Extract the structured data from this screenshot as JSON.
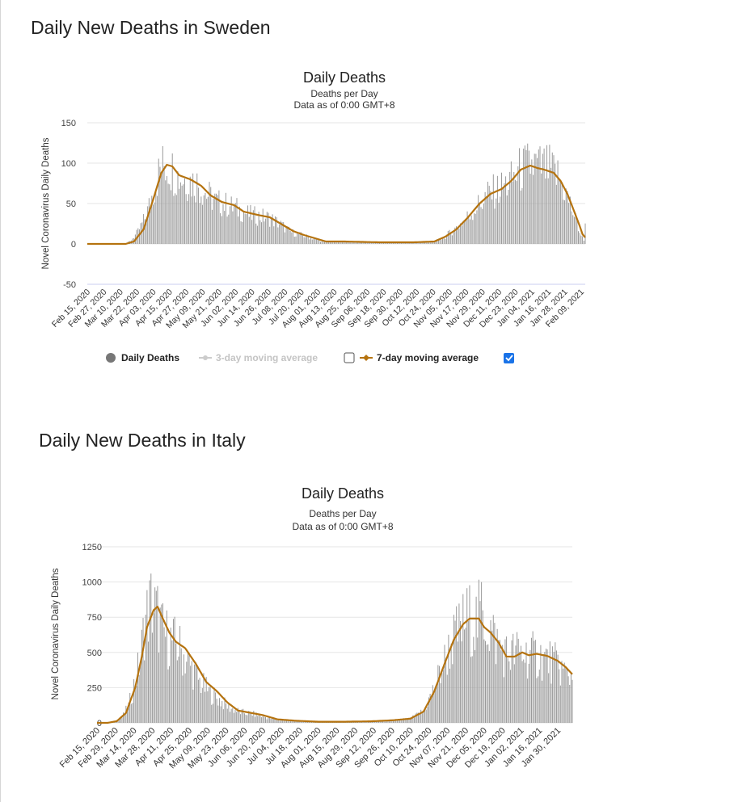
{
  "page": {
    "sweden_heading": "Daily New Deaths in Sweden",
    "italy_heading": "Daily New Deaths in Italy"
  },
  "colors": {
    "bar": "#9a9a9a",
    "ma7": "#b5730f",
    "ma3": "#cccccc",
    "grid": "#e6e6e6",
    "neg_line": "#c8ccf0",
    "checkbox_checked": "#1a73e8"
  },
  "chart_data": [
    {
      "type": "bar",
      "id": "sweden",
      "title": "Daily Deaths",
      "subtitle_1": "Deaths per Day",
      "subtitle_2": "Data as of 0:00 GMT+8",
      "ylabel": "Novel Coronavirus Daily Deaths",
      "ylim": [
        -50,
        150
      ],
      "yticks": [
        150,
        100,
        50,
        0,
        -50
      ],
      "x_ticks": [
        "Feb 15, 2020",
        "Feb 27, 2020",
        "Mar 10, 2020",
        "Mar 22, 2020",
        "Apr 03, 2020",
        "Apr 15, 2020",
        "Apr 27, 2020",
        "May 09, 2020",
        "May 21, 2020",
        "Jun 02, 2020",
        "Jun 14, 2020",
        "Jun 26, 2020",
        "Jul 08, 2020",
        "Jul 20, 2020",
        "Aug 01, 2020",
        "Aug 13, 2020",
        "Aug 25, 2020",
        "Sep 06, 2020",
        "Sep 18, 2020",
        "Sep 30, 2020",
        "Oct 12, 2020",
        "Oct 24, 2020",
        "Nov 05, 2020",
        "Nov 17, 2020",
        "Nov 29, 2020",
        "Dec 11, 2020",
        "Dec 23, 2020",
        "Jan 04, 2021",
        "Jan 16, 2021",
        "Jan 28, 2021",
        "Feb 09, 2021"
      ],
      "tick_interval_days": 12,
      "start_date": "Feb 15, 2020",
      "end_date": "Feb 12, 2021",
      "grid": true,
      "legend_position": "bottom-center",
      "legend": {
        "daily_label": "Daily Deaths",
        "ma3_label": "3-day moving average",
        "ma7_label": "7-day moving average",
        "ma3_checked": false,
        "ma7_checked": true
      },
      "series": [
        {
          "name": "Daily Deaths",
          "anchors": [
            [
              "Feb 15, 2020",
              0
            ],
            [
              "Mar 12, 2020",
              0
            ],
            [
              "Mar 17, 2020",
              3
            ],
            [
              "Mar 23, 2020",
              15
            ],
            [
              "Mar 29, 2020",
              35
            ],
            [
              "Apr 03, 2020",
              65
            ],
            [
              "Apr 08, 2020",
              92
            ],
            [
              "Apr 11, 2020",
              98
            ],
            [
              "Apr 15, 2020",
              96
            ],
            [
              "Apr 21, 2020",
              84
            ],
            [
              "Apr 27, 2020",
              80
            ],
            [
              "May 05, 2020",
              75
            ],
            [
              "May 12, 2020",
              62
            ],
            [
              "May 19, 2020",
              52
            ],
            [
              "May 27, 2020",
              48
            ],
            [
              "Jun 05, 2020",
              42
            ],
            [
              "Jun 12, 2020",
              36
            ],
            [
              "Jun 20, 2020",
              34
            ],
            [
              "Jun 27, 2020",
              32
            ],
            [
              "Jul 05, 2020",
              24
            ],
            [
              "Jul 12, 2020",
              15
            ],
            [
              "Jul 20, 2020",
              11
            ],
            [
              "Jul 28, 2020",
              7
            ],
            [
              "Aug 05, 2020",
              3
            ],
            [
              "Aug 20, 2020",
              3
            ],
            [
              "Sep 15, 2020",
              2
            ],
            [
              "Oct 10, 2020",
              2
            ],
            [
              "Oct 25, 2020",
              3
            ],
            [
              "Nov 01, 2020",
              8
            ],
            [
              "Nov 10, 2020",
              20
            ],
            [
              "Nov 18, 2020",
              33
            ],
            [
              "Nov 26, 2020",
              48
            ],
            [
              "Dec 04, 2020",
              62
            ],
            [
              "Dec 12, 2020",
              68
            ],
            [
              "Dec 20, 2020",
              78
            ],
            [
              "Dec 27, 2020",
              92
            ],
            [
              "Jan 04, 2021",
              98
            ],
            [
              "Jan 10, 2021",
              95
            ],
            [
              "Jan 17, 2021",
              92
            ],
            [
              "Jan 24, 2021",
              82
            ],
            [
              "Jan 30, 2021",
              58
            ],
            [
              "Feb 04, 2021",
              35
            ],
            [
              "Feb 08, 2021",
              15
            ],
            [
              "Feb 11, 2021",
              4
            ],
            [
              "Feb 12, 2021",
              35
            ]
          ]
        },
        {
          "name": "7-day moving average",
          "anchors": [
            [
              "Feb 15, 2020",
              0
            ],
            [
              "Mar 14, 2020",
              0
            ],
            [
              "Mar 20, 2020",
              3
            ],
            [
              "Mar 27, 2020",
              18
            ],
            [
              "Apr 03, 2020",
              55
            ],
            [
              "Apr 09, 2020",
              88
            ],
            [
              "Apr 13, 2020",
              98
            ],
            [
              "Apr 17, 2020",
              96
            ],
            [
              "Apr 22, 2020",
              85
            ],
            [
              "Apr 30, 2020",
              80
            ],
            [
              "May 08, 2020",
              72
            ],
            [
              "May 15, 2020",
              60
            ],
            [
              "May 23, 2020",
              52
            ],
            [
              "Jun 01, 2020",
              48
            ],
            [
              "Jun 08, 2020",
              40
            ],
            [
              "Jun 18, 2020",
              36
            ],
            [
              "Jun 27, 2020",
              33
            ],
            [
              "Jul 06, 2020",
              24
            ],
            [
              "Jul 14, 2020",
              16
            ],
            [
              "Jul 22, 2020",
              11
            ],
            [
              "Jul 30, 2020",
              7
            ],
            [
              "Aug 07, 2020",
              3
            ],
            [
              "Aug 20, 2020",
              3
            ],
            [
              "Sep 15, 2020",
              2
            ],
            [
              "Oct 10, 2020",
              2
            ],
            [
              "Oct 25, 2020",
              3
            ],
            [
              "Nov 02, 2020",
              9
            ],
            [
              "Nov 10, 2020",
              18
            ],
            [
              "Nov 18, 2020",
              32
            ],
            [
              "Nov 27, 2020",
              50
            ],
            [
              "Dec 05, 2020",
              62
            ],
            [
              "Dec 13, 2020",
              68
            ],
            [
              "Dec 20, 2020",
              78
            ],
            [
              "Dec 27, 2020",
              92
            ],
            [
              "Jan 03, 2021",
              97
            ],
            [
              "Jan 08, 2021",
              94
            ],
            [
              "Jan 13, 2021",
              92
            ],
            [
              "Jan 20, 2021",
              88
            ],
            [
              "Jan 25, 2021",
              78
            ],
            [
              "Jan 30, 2021",
              62
            ],
            [
              "Feb 04, 2021",
              40
            ],
            [
              "Feb 08, 2021",
              22
            ],
            [
              "Feb 10, 2021",
              12
            ],
            [
              "Feb 12, 2021",
              8
            ]
          ]
        }
      ]
    },
    {
      "type": "bar",
      "id": "italy",
      "title": "Daily Deaths",
      "subtitle_1": "Deaths per Day",
      "subtitle_2": "Data as of 0:00 GMT+8",
      "ylabel": "Novel Coronavirus Daily Deaths",
      "ylim": [
        0,
        1250
      ],
      "yticks": [
        1250,
        1000,
        750,
        500,
        250,
        0
      ],
      "x_ticks": [
        "Feb 15, 2020",
        "Feb 29, 2020",
        "Mar 14, 2020",
        "Mar 28, 2020",
        "Apr 11, 2020",
        "Apr 25, 2020",
        "May 09, 2020",
        "May 23, 2020",
        "Jun 06, 2020",
        "Jun 20, 2020",
        "Jul 04, 2020",
        "Jul 18, 2020",
        "Aug 01, 2020",
        "Aug 15, 2020",
        "Aug 29, 2020",
        "Sep 12, 2020",
        "Sep 26, 2020",
        "Oct 10, 2020",
        "Oct 24, 2020",
        "Nov 07, 2020",
        "Nov 21, 2020",
        "Dec 05, 2020",
        "Dec 19, 2020",
        "Jan 02, 2021",
        "Jan 16, 2021",
        "Jan 30, 2021"
      ],
      "tick_interval_days": 14,
      "start_date": "Feb 15, 2020",
      "end_date": "Feb 10, 2021",
      "grid": true,
      "series": [
        {
          "name": "Daily Deaths",
          "anchors": [
            [
              "Feb 15, 2020",
              0
            ],
            [
              "Feb 21, 2020",
              0
            ],
            [
              "Feb 28, 2020",
              8
            ],
            [
              "Mar 05, 2020",
              40
            ],
            [
              "Mar 10, 2020",
              120
            ],
            [
              "Mar 15, 2020",
              300
            ],
            [
              "Mar 19, 2020",
              450
            ],
            [
              "Mar 22, 2020",
              700
            ],
            [
              "Mar 27, 2020",
              850
            ],
            [
              "Apr 01, 2020",
              760
            ],
            [
              "Apr 05, 2020",
              640
            ],
            [
              "Apr 10, 2020",
              590
            ],
            [
              "Apr 17, 2020",
              540
            ],
            [
              "Apr 25, 2020",
              420
            ],
            [
              "May 03, 2020",
              290
            ],
            [
              "May 10, 2020",
              220
            ],
            [
              "May 17, 2020",
              170
            ],
            [
              "May 25, 2020",
              110
            ],
            [
              "Jun 03, 2020",
              75
            ],
            [
              "Jun 12, 2020",
              65
            ],
            [
              "Jun 20, 2020",
              45
            ],
            [
              "Jul 01, 2020",
              20
            ],
            [
              "Jul 15, 2020",
              14
            ],
            [
              "Aug 01, 2020",
              8
            ],
            [
              "Aug 20, 2020",
              8
            ],
            [
              "Sep 10, 2020",
              11
            ],
            [
              "Sep 26, 2020",
              18
            ],
            [
              "Oct 10, 2020",
              28
            ],
            [
              "Oct 20, 2020",
              85
            ],
            [
              "Oct 27, 2020",
              220
            ],
            [
              "Nov 03, 2020",
              390
            ],
            [
              "Nov 10, 2020",
              560
            ],
            [
              "Nov 16, 2020",
              650
            ],
            [
              "Nov 22, 2020",
              740
            ],
            [
              "Nov 30, 2020",
              720
            ],
            [
              "Dec 03, 2020",
              800
            ],
            [
              "Dec 08, 2020",
              690
            ],
            [
              "Dec 14, 2020",
              580
            ],
            [
              "Dec 22, 2020",
              480
            ],
            [
              "Dec 30, 2020",
              500
            ],
            [
              "Jan 08, 2021",
              480
            ],
            [
              "Jan 16, 2021",
              470
            ],
            [
              "Jan 24, 2021",
              440
            ],
            [
              "Jan 31, 2021",
              400
            ],
            [
              "Feb 06, 2021",
              340
            ],
            [
              "Feb 10, 2021",
              330
            ]
          ]
        },
        {
          "name": "7-day moving average",
          "anchors": [
            [
              "Feb 15, 2020",
              0
            ],
            [
              "Feb 23, 2020",
              0
            ],
            [
              "Mar 01, 2020",
              12
            ],
            [
              "Mar 08, 2020",
              70
            ],
            [
              "Mar 15, 2020",
              250
            ],
            [
              "Mar 20, 2020",
              470
            ],
            [
              "Mar 24, 2020",
              680
            ],
            [
              "Mar 29, 2020",
              800
            ],
            [
              "Apr 01, 2020",
              825
            ],
            [
              "Apr 05, 2020",
              740
            ],
            [
              "Apr 10, 2020",
              640
            ],
            [
              "Apr 15, 2020",
              575
            ],
            [
              "Apr 22, 2020",
              530
            ],
            [
              "Apr 30, 2020",
              420
            ],
            [
              "May 08, 2020",
              290
            ],
            [
              "May 16, 2020",
              225
            ],
            [
              "May 24, 2020",
              145
            ],
            [
              "Jun 01, 2020",
              88
            ],
            [
              "Jun 10, 2020",
              72
            ],
            [
              "Jun 20, 2020",
              55
            ],
            [
              "Jul 01, 2020",
              25
            ],
            [
              "Jul 15, 2020",
              15
            ],
            [
              "Aug 01, 2020",
              8
            ],
            [
              "Aug 20, 2020",
              8
            ],
            [
              "Sep 10, 2020",
              11
            ],
            [
              "Sep 26, 2020",
              18
            ],
            [
              "Oct 10, 2020",
              30
            ],
            [
              "Oct 20, 2020",
              80
            ],
            [
              "Oct 28, 2020",
              220
            ],
            [
              "Nov 05, 2020",
              420
            ],
            [
              "Nov 12, 2020",
              590
            ],
            [
              "Nov 19, 2020",
              700
            ],
            [
              "Nov 24, 2020",
              740
            ],
            [
              "Dec 01, 2020",
              740
            ],
            [
              "Dec 05, 2020",
              680
            ],
            [
              "Dec 10, 2020",
              640
            ],
            [
              "Dec 16, 2020",
              570
            ],
            [
              "Dec 22, 2020",
              470
            ],
            [
              "Dec 28, 2020",
              470
            ],
            [
              "Jan 03, 2021",
              500
            ],
            [
              "Jan 08, 2021",
              480
            ],
            [
              "Jan 14, 2021",
              490
            ],
            [
              "Jan 22, 2021",
              475
            ],
            [
              "Jan 30, 2021",
              440
            ],
            [
              "Feb 05, 2021",
              395
            ],
            [
              "Feb 10, 2021",
              345
            ]
          ]
        }
      ]
    }
  ]
}
